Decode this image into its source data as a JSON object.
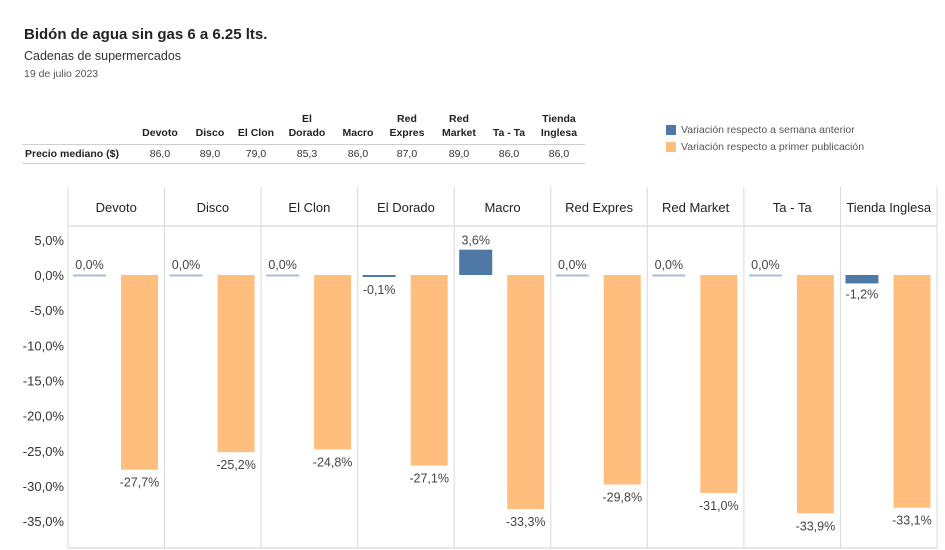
{
  "header": {
    "title": "Bidón de agua sin gas 6 a 6.25 lts.",
    "subtitle": "Cadenas de supermercados",
    "date": "19 de julio 2023"
  },
  "price_table": {
    "row_label": "Precio mediano ($)",
    "columns": [
      {
        "line1": "Devoto",
        "line2": "",
        "value": "86,0"
      },
      {
        "line1": "Disco",
        "line2": "",
        "value": "89,0"
      },
      {
        "line1": "El Clon",
        "line2": "",
        "value": "79,0"
      },
      {
        "line1": "El Dorado",
        "line2": "",
        "value": "85,3"
      },
      {
        "line1": "Macro",
        "line2": "",
        "value": "86,0"
      },
      {
        "line1": "Red",
        "line2": "Expres",
        "value": "87,0"
      },
      {
        "line1": "Red",
        "line2": "Market",
        "value": "89,0"
      },
      {
        "line1": "Ta - Ta",
        "line2": "",
        "value": "86,0"
      },
      {
        "line1": "Tienda",
        "line2": "Inglesa",
        "value": "86,0"
      }
    ]
  },
  "legend": {
    "weekly": "Variación respecto a semana anterior",
    "first": "Variación respecto a primer publicación"
  },
  "colors": {
    "weekly": "#4e79a7",
    "first": "#ffbe7d",
    "grid": "#d9d9d9",
    "text": "#333333"
  },
  "chart_data": {
    "type": "bar",
    "categories": [
      "Devoto",
      "Disco",
      "El Clon",
      "El Dorado",
      "Macro",
      "Red Expres",
      "Red Market",
      "Ta - Ta",
      "Tienda Inglesa"
    ],
    "series": [
      {
        "name": "Variación respecto a semana anterior",
        "values": [
          0.0,
          0.0,
          0.0,
          -0.1,
          3.6,
          0.0,
          0.0,
          0.0,
          -1.2
        ],
        "labels": [
          "0,0%",
          "0,0%",
          "0,0%",
          "-0,1%",
          "3,6%",
          "0,0%",
          "0,0%",
          "0,0%",
          "-1,2%"
        ]
      },
      {
        "name": "Variación respecto a primer publicación",
        "values": [
          -27.7,
          -25.2,
          -24.8,
          -27.1,
          -33.3,
          -29.8,
          -31.0,
          -33.9,
          -33.1
        ],
        "labels": [
          "-27,7%",
          "-25,2%",
          "-24,8%",
          "-27,1%",
          "-33,3%",
          "-29,8%",
          "-31,0%",
          "-33,9%",
          "-33,1%"
        ]
      }
    ],
    "y_ticks": [
      5,
      0,
      -5,
      -10,
      -15,
      -20,
      -25,
      -30,
      -35
    ],
    "y_tick_labels": [
      "5,0%",
      "0,0%",
      "-5,0%",
      "-10,0%",
      "-15,0%",
      "-20,0%",
      "-25,0%",
      "-30,0%",
      "-35,0%"
    ],
    "ylim": [
      -38.6,
      7.4
    ],
    "xlabel": "",
    "ylabel": ""
  }
}
